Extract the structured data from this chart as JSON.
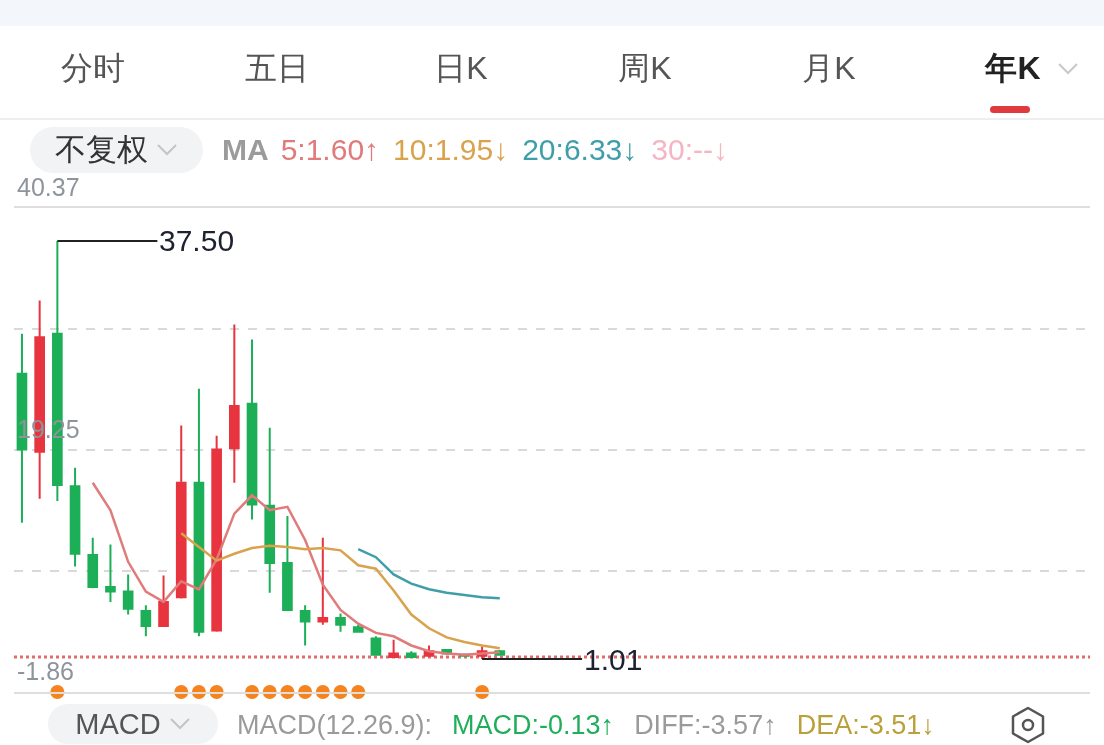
{
  "chart_data": {
    "type": "candlestick",
    "categories": [
      null,
      null,
      null,
      null,
      null,
      null,
      null,
      null,
      null,
      null,
      null,
      null,
      null,
      null,
      null,
      null,
      null,
      null,
      null,
      null,
      null,
      null,
      null,
      null,
      null,
      null,
      null,
      null
    ],
    "ohlc": [
      [
        25.9,
        29.4,
        12.9,
        19.3
      ],
      [
        19.1,
        32.3,
        15.0,
        29.1
      ],
      [
        29.4,
        37.5,
        14.8,
        16.2
      ],
      [
        16.1,
        17.7,
        9.1,
        10.2
      ],
      [
        10.1,
        11.6,
        7.2,
        7.3
      ],
      [
        7.3,
        11.0,
        6.0,
        6.9
      ],
      [
        6.9,
        8.4,
        4.9,
        5.4
      ],
      [
        5.2,
        5.7,
        3.0,
        3.9
      ],
      [
        3.9,
        8.3,
        3.9,
        6.0
      ],
      [
        6.4,
        21.4,
        6.3,
        16.4
      ],
      [
        16.4,
        24.6,
        3.0,
        3.4
      ],
      [
        3.5,
        20.5,
        3.4,
        19.3
      ],
      [
        19.4,
        30.2,
        16.4,
        23.1
      ],
      [
        23.3,
        28.9,
        13.2,
        14.5
      ],
      [
        14.4,
        21.2,
        6.8,
        9.4
      ],
      [
        9.4,
        13.5,
        5.2,
        5.3
      ],
      [
        5.2,
        5.7,
        2.2,
        4.3
      ],
      [
        4.3,
        11.6,
        4.0,
        4.6
      ],
      [
        4.6,
        5.0,
        3.4,
        4.0
      ],
      [
        3.8,
        4.0,
        3.3,
        3.4
      ],
      [
        2.8,
        3.0,
        1.4,
        1.4
      ],
      [
        1.2,
        2.7,
        1.2,
        1.5
      ],
      [
        1.5,
        1.7,
        1.2,
        1.2
      ],
      [
        1.3,
        2.2,
        1.2,
        1.7
      ],
      [
        1.8,
        1.9,
        1.4,
        1.5
      ],
      [
        1.4,
        1.5,
        1.3,
        1.3
      ],
      [
        1.3,
        2.1,
        1.01,
        1.7
      ],
      [
        1.7,
        1.8,
        1.3,
        1.4
      ]
    ],
    "colors": [
      "#1daf57",
      "#e8343f",
      "#1daf57",
      "#1daf57",
      "#1daf57",
      "#1daf57",
      "#1daf57",
      "#1daf57",
      "#e8343f",
      "#e8343f",
      "#1daf57",
      "#e8343f",
      "#e8343f",
      "#1daf57",
      "#1daf57",
      "#1daf57",
      "#1daf57",
      "#e8343f",
      "#1daf57",
      "#1daf57",
      "#1daf57",
      "#e8343f",
      "#1daf57",
      "#e8343f",
      "#1daf57",
      "#1daf57",
      "#e8343f",
      "#1daf57"
    ],
    "series": [
      {
        "type": "line",
        "name": "5:1.60↑",
        "color": "#e07b7b",
        "values": [
          null,
          null,
          null,
          null,
          16.4,
          14.0,
          9.5,
          6.9,
          6.0,
          7.8,
          7.1,
          9.7,
          13.7,
          15.3,
          14.0,
          14.3,
          11.4,
          7.5,
          5.3,
          4.1,
          3.3,
          3.0,
          2.2,
          1.7,
          1.5,
          1.4,
          1.5,
          1.6
        ]
      },
      {
        "type": "line",
        "name": "10:1.95↓",
        "color": "#d9a24c",
        "values": [
          null,
          null,
          null,
          null,
          null,
          null,
          null,
          null,
          null,
          12.0,
          10.8,
          9.6,
          10.2,
          10.7,
          10.9,
          10.8,
          10.6,
          10.7,
          10.5,
          9.2,
          8.9,
          7.0,
          4.9,
          3.7,
          2.9,
          2.5,
          2.2,
          1.95
        ]
      },
      {
        "type": "line",
        "name": "20:6.33↓",
        "color": "#3f9fa9",
        "values": [
          null,
          null,
          null,
          null,
          null,
          null,
          null,
          null,
          null,
          null,
          null,
          null,
          null,
          null,
          null,
          null,
          null,
          null,
          null,
          10.6,
          9.9,
          8.4,
          7.6,
          7.1,
          6.8,
          6.6,
          6.4,
          6.33
        ]
      },
      {
        "type": "line",
        "name": "30:--↓",
        "color": "#f4b6c2",
        "values": [
          null,
          null,
          null,
          null,
          null,
          null,
          null,
          null,
          null,
          null,
          null,
          null,
          null,
          null,
          null,
          null,
          null,
          null,
          null,
          null,
          null,
          null,
          null,
          null,
          null,
          null,
          null,
          null
        ]
      },
      {
        "type": "scatter",
        "color": "#f5841f",
        "marker": "circle",
        "values": [
          null,
          null,
          -1.86,
          null,
          null,
          null,
          null,
          null,
          null,
          -1.86,
          -1.86,
          -1.86,
          null,
          -1.86,
          -1.86,
          -1.86,
          -1.86,
          -1.86,
          -1.86,
          -1.86,
          null,
          null,
          null,
          null,
          null,
          null,
          -1.86,
          null
        ]
      }
    ],
    "legend_title": "MA",
    "legend": "top",
    "ylim": [
      -1.86,
      40.37
    ],
    "yticks": [
      40.37,
      {
        "value": 29.81,
        "label": null
      },
      19.25,
      {
        "value": 8.69,
        "label": null
      },
      -1.86
    ],
    "grid": "y",
    "tick_labels": "y",
    "ref_lines": [
      {
        "axis": "y",
        "value": 1.2,
        "color": "#e06c6c",
        "line_style": "dotted"
      }
    ],
    "annotations": [
      "37.50",
      "1.01",
      "分时",
      "五日",
      "日K",
      "周K",
      "月K",
      "年K",
      "不复权",
      "MACD",
      "MACD(12.26.9):",
      "MACD:-0.13↑",
      "DIFF:-3.57↑",
      "DEA:-3.51↓"
    ]
  }
}
